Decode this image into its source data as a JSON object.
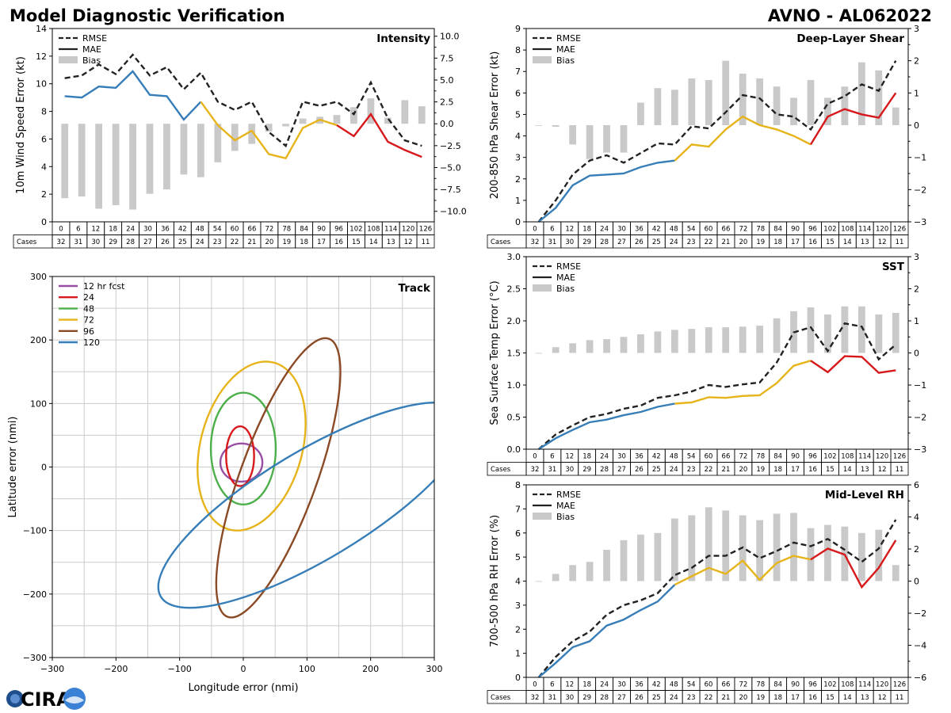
{
  "figure": {
    "title_left": "Model Diagnostic Verification",
    "title_right": "AVNO - AL062022",
    "logo_text": "CIRA",
    "colors": {
      "early": "#377eb8",
      "mid": "#e6b41a",
      "late": "#d7191c",
      "bias": "#c9c9c9",
      "grid": "#cccccc",
      "rmse": "#222222"
    }
  },
  "table": {
    "cases_label": "Cases",
    "hours": [
      "0",
      "6",
      "12",
      "18",
      "24",
      "30",
      "36",
      "42",
      "48",
      "54",
      "60",
      "66",
      "72",
      "78",
      "84",
      "90",
      "96",
      "102",
      "108",
      "114",
      "120",
      "126"
    ],
    "cases": [
      "32",
      "31",
      "30",
      "29",
      "28",
      "27",
      "26",
      "25",
      "24",
      "23",
      "22",
      "21",
      "20",
      "19",
      "18",
      "17",
      "16",
      "15",
      "14",
      "13",
      "12",
      "11"
    ]
  },
  "chart_data": [
    {
      "id": "intensity",
      "type": "line",
      "title": "Intensity",
      "ylabel": "10m Wind Speed Error (kt)",
      "ylim": [
        0,
        14
      ],
      "yticks": [
        "0",
        "2",
        "4",
        "6",
        "8",
        "10",
        "12",
        "14"
      ],
      "y2lim": [
        -11.2,
        10.88
      ],
      "y2ticks": [
        "−10.0",
        "−7.5",
        "−5.0",
        "−2.5",
        "0.0",
        "2.5",
        "5.0",
        "7.5",
        "10.0"
      ],
      "y2tick_values": [
        -10,
        -7.5,
        -5,
        -2.5,
        0,
        2.5,
        5,
        7.5,
        10
      ],
      "legend": [
        "RMSE",
        "MAE",
        "Bias"
      ],
      "x": [
        0,
        6,
        12,
        18,
        24,
        30,
        36,
        42,
        48,
        54,
        60,
        66,
        72,
        78,
        84,
        90,
        96,
        102,
        108,
        114,
        120,
        126
      ],
      "rmse": [
        10.4,
        10.6,
        11.4,
        10.7,
        12.1,
        10.6,
        11.2,
        9.6,
        10.8,
        8.7,
        8.1,
        8.7,
        6.5,
        5.5,
        8.7,
        8.4,
        8.7,
        7.8,
        10.1,
        7.5,
        5.9,
        5.5
      ],
      "mae": [
        9.1,
        9.0,
        9.8,
        9.7,
        10.9,
        9.2,
        9.1,
        7.4,
        8.7,
        7.0,
        5.9,
        6.6,
        4.9,
        4.6,
        6.8,
        7.4,
        7.0,
        6.2,
        7.8,
        5.8,
        5.2,
        4.7
      ],
      "bias": [
        -8.5,
        -8.3,
        -9.7,
        -9.3,
        -9.8,
        -8.0,
        -7.5,
        -5.8,
        -6.1,
        -4.4,
        -3.1,
        -2.3,
        -0.9,
        -0.3,
        0.6,
        0.8,
        1.0,
        1.9,
        2.9,
        0.7,
        2.7,
        2.0
      ]
    },
    {
      "id": "shear",
      "type": "line",
      "title": "Deep-Layer Shear",
      "ylabel": "200-850 hPa Shear Error (kt)",
      "ylim": [
        0,
        9
      ],
      "yticks": [
        "0",
        "1",
        "2",
        "3",
        "4",
        "5",
        "6",
        "7",
        "8",
        "9"
      ],
      "y2lim": [
        -3,
        3
      ],
      "y2ticks": [
        "−3",
        "−2",
        "−1",
        "0",
        "1",
        "2",
        "3"
      ],
      "y2tick_values": [
        -3,
        -2,
        -1,
        0,
        1,
        2,
        3
      ],
      "legend": [
        "RMSE",
        "MAE",
        "Bias"
      ],
      "x": [
        0,
        6,
        12,
        18,
        24,
        30,
        36,
        42,
        48,
        54,
        60,
        66,
        72,
        78,
        84,
        90,
        96,
        102,
        108,
        114,
        120,
        126
      ],
      "rmse": [
        0.0,
        1.0,
        2.2,
        2.85,
        3.1,
        2.75,
        3.2,
        3.65,
        3.6,
        4.45,
        4.35,
        5.1,
        5.9,
        5.75,
        5.0,
        4.9,
        4.3,
        5.5,
        5.85,
        6.4,
        6.1,
        7.5
      ],
      "mae": [
        0.0,
        0.65,
        1.7,
        2.15,
        2.2,
        2.25,
        2.55,
        2.75,
        2.85,
        3.6,
        3.5,
        4.3,
        4.9,
        4.5,
        4.3,
        4.0,
        3.6,
        4.9,
        5.25,
        5.0,
        4.85,
        6.0
      ],
      "bias": [
        0.0,
        -0.05,
        -0.6,
        -1.05,
        -0.85,
        -0.85,
        0.7,
        1.15,
        1.1,
        1.45,
        1.4,
        2.0,
        1.6,
        1.45,
        1.2,
        0.85,
        1.4,
        0.85,
        1.2,
        1.95,
        1.7,
        0.55
      ]
    },
    {
      "id": "sst",
      "type": "line",
      "title": "SST",
      "ylabel": "Sea Surface Temp Error (°C)",
      "ylim": [
        0,
        3
      ],
      "yticks": [
        "0.0",
        "0.5",
        "1.0",
        "1.5",
        "2.0",
        "2.5",
        "3.0"
      ],
      "y2lim": [
        -3,
        3
      ],
      "y2ticks": [
        "−3",
        "−2",
        "−1",
        "0",
        "1",
        "2",
        "3"
      ],
      "y2tick_values": [
        -3,
        -2,
        -1,
        0,
        1,
        2,
        3
      ],
      "legend": [
        "RMSE",
        "MAE",
        "Bias"
      ],
      "x": [
        0,
        6,
        12,
        18,
        24,
        30,
        36,
        42,
        48,
        54,
        60,
        66,
        72,
        78,
        84,
        90,
        96,
        102,
        108,
        114,
        120,
        126
      ],
      "rmse": [
        0.0,
        0.23,
        0.37,
        0.5,
        0.55,
        0.63,
        0.68,
        0.8,
        0.84,
        0.9,
        1.0,
        0.97,
        1.01,
        1.04,
        1.35,
        1.82,
        1.9,
        1.53,
        1.96,
        1.91,
        1.4,
        1.63
      ],
      "mae": [
        0.0,
        0.17,
        0.3,
        0.42,
        0.46,
        0.53,
        0.58,
        0.66,
        0.71,
        0.73,
        0.81,
        0.8,
        0.83,
        0.84,
        1.03,
        1.3,
        1.38,
        1.2,
        1.45,
        1.44,
        1.19,
        1.23
      ],
      "bias": [
        0.0,
        0.18,
        0.3,
        0.4,
        0.43,
        0.5,
        0.58,
        0.67,
        0.72,
        0.75,
        0.8,
        0.8,
        0.82,
        0.85,
        1.08,
        1.3,
        1.42,
        1.2,
        1.45,
        1.45,
        1.2,
        1.25
      ]
    },
    {
      "id": "rh",
      "type": "line",
      "title": "Mid-Level RH",
      "ylabel": "700-500 hPa RH Error (%)",
      "ylim": [
        0,
        8
      ],
      "yticks": [
        "0",
        "1",
        "2",
        "3",
        "4",
        "5",
        "6",
        "7",
        "8"
      ],
      "y2lim": [
        -6,
        6
      ],
      "y2ticks": [
        "−6",
        "−4",
        "−2",
        "0",
        "2",
        "4",
        "6"
      ],
      "y2tick_values": [
        -6,
        -4,
        -2,
        0,
        2,
        4,
        6
      ],
      "legend": [
        "RMSE",
        "MAE",
        "Bias"
      ],
      "x": [
        0,
        6,
        12,
        18,
        24,
        30,
        36,
        42,
        48,
        54,
        60,
        66,
        72,
        78,
        84,
        90,
        96,
        102,
        108,
        114,
        120,
        126
      ],
      "rmse": [
        0.0,
        0.85,
        1.5,
        1.9,
        2.6,
        3.0,
        3.2,
        3.5,
        4.25,
        4.55,
        5.05,
        5.05,
        5.4,
        4.95,
        5.25,
        5.6,
        5.45,
        5.75,
        5.3,
        4.8,
        5.35,
        6.55
      ],
      "mae": [
        0.0,
        0.6,
        1.25,
        1.5,
        2.15,
        2.4,
        2.8,
        3.15,
        3.85,
        4.2,
        4.55,
        4.3,
        4.85,
        4.05,
        4.75,
        5.05,
        4.9,
        5.35,
        5.1,
        3.75,
        4.55,
        5.7
      ],
      "bias": [
        0.0,
        0.45,
        1.0,
        1.2,
        1.95,
        2.55,
        2.9,
        3.0,
        3.9,
        4.1,
        4.6,
        4.4,
        4.1,
        3.8,
        4.2,
        4.25,
        3.3,
        3.5,
        3.4,
        3.0,
        3.2,
        1.0
      ]
    },
    {
      "id": "track",
      "type": "scatter",
      "title": "Track",
      "xlabel": "Longitude error (nmi)",
      "ylabel": "Latitude error (nmi)",
      "xlim": [
        -300,
        300
      ],
      "ylim": [
        -300,
        300
      ],
      "xticks": [
        "−300",
        "−200",
        "−100",
        "0",
        "100",
        "200",
        "300"
      ],
      "yticks": [
        "−300",
        "−200",
        "−100",
        "0",
        "100",
        "200",
        "300"
      ],
      "legend": [
        "12 hr fcst",
        "24",
        "48",
        "72",
        "96",
        "120"
      ],
      "ellipses": [
        {
          "label": "12 hr fcst",
          "color": "#984ea3",
          "cx": -3,
          "cy": 7,
          "rx": 33,
          "ry": 30,
          "angle": 0
        },
        {
          "label": "24",
          "color": "#d7191c",
          "cx": -5,
          "cy": 17,
          "rx": 22,
          "ry": 47,
          "angle": 0
        },
        {
          "label": "48",
          "color": "#4daf4a",
          "cx": 0,
          "cy": 29,
          "rx": 51,
          "ry": 88,
          "angle": 0
        },
        {
          "label": "72",
          "color": "#e6b41a",
          "cx": 13,
          "cy": 33,
          "rx": 80,
          "ry": 136,
          "angle": 15
        },
        {
          "label": "96",
          "color": "#8b4a26",
          "cx": 55,
          "cy": -17,
          "rx": 60,
          "ry": 233,
          "angle": 20
        },
        {
          "label": "120",
          "color": "#377eb8",
          "cx": 110,
          "cy": -60,
          "rx": 85,
          "ry": 280,
          "angle": 59
        }
      ]
    }
  ]
}
